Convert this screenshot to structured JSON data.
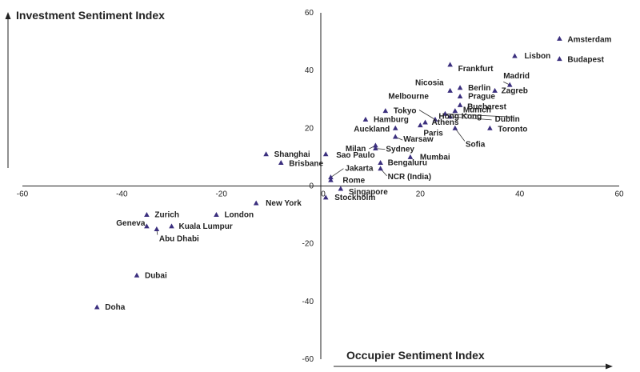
{
  "chart_data": {
    "type": "scatter",
    "title": "",
    "ylabel": "Investment Sentiment Index",
    "xlabel": "Occupier Sentiment Index",
    "xlim": [
      -60,
      60
    ],
    "ylim": [
      -60,
      60
    ],
    "x_ticks": [
      -60,
      -40,
      -20,
      0,
      20,
      40,
      60
    ],
    "y_ticks": [
      -60,
      -40,
      -20,
      0,
      20,
      40,
      60
    ],
    "grid": false,
    "points": [
      {
        "label": "Amsterdam",
        "x": 48,
        "y": 51
      },
      {
        "label": "Lisbon",
        "x": 39,
        "y": 45
      },
      {
        "label": "Budapest",
        "x": 48,
        "y": 44
      },
      {
        "label": "Frankfurt",
        "x": 26,
        "y": 42
      },
      {
        "label": "Madrid",
        "x": 38,
        "y": 35
      },
      {
        "label": "Nicosia",
        "x": 26,
        "y": 33
      },
      {
        "label": "Berlin",
        "x": 28,
        "y": 34
      },
      {
        "label": "Prague",
        "x": 28,
        "y": 31
      },
      {
        "label": "Zagreb",
        "x": 35,
        "y": 33
      },
      {
        "label": "Bucharest",
        "x": 28,
        "y": 28
      },
      {
        "label": "Munich",
        "x": 27,
        "y": 26
      },
      {
        "label": "Melbourne",
        "x": 23,
        "y": 23
      },
      {
        "label": "Tokyo",
        "x": 13,
        "y": 26
      },
      {
        "label": "Hong Kong",
        "x": 25,
        "y": 25
      },
      {
        "label": "Dublin",
        "x": 26,
        "y": 24
      },
      {
        "label": "Hamburg",
        "x": 9,
        "y": 23
      },
      {
        "label": "Athens",
        "x": 21,
        "y": 22
      },
      {
        "label": "Toronto",
        "x": 34,
        "y": 20
      },
      {
        "label": "Auckland",
        "x": 15,
        "y": 20
      },
      {
        "label": "Paris",
        "x": 20,
        "y": 21
      },
      {
        "label": "Sofia",
        "x": 27,
        "y": 20
      },
      {
        "label": "Milan",
        "x": 11,
        "y": 14
      },
      {
        "label": "Warsaw",
        "x": 15,
        "y": 17
      },
      {
        "label": "Sydney",
        "x": 11,
        "y": 13
      },
      {
        "label": "Shanghai",
        "x": -11,
        "y": 11
      },
      {
        "label": "Sao Paulo",
        "x": 1,
        "y": 11
      },
      {
        "label": "Mumbai",
        "x": 18,
        "y": 10
      },
      {
        "label": "Brisbane",
        "x": -8,
        "y": 8
      },
      {
        "label": "Bengaluru",
        "x": 12,
        "y": 8
      },
      {
        "label": "NCR (India)",
        "x": 12,
        "y": 6
      },
      {
        "label": "Jakarta",
        "x": 2,
        "y": 3
      },
      {
        "label": "Rome",
        "x": 2,
        "y": 2
      },
      {
        "label": "Singapore",
        "x": 4,
        "y": -1
      },
      {
        "label": "Stockholm",
        "x": 1,
        "y": -4
      },
      {
        "label": "New York",
        "x": -13,
        "y": -6
      },
      {
        "label": "Zurich",
        "x": -35,
        "y": -10
      },
      {
        "label": "London",
        "x": -21,
        "y": -10
      },
      {
        "label": "Geneva",
        "x": -35,
        "y": -14
      },
      {
        "label": "Kuala Lumpur",
        "x": -30,
        "y": -14
      },
      {
        "label": "Abu Dhabi",
        "x": -33,
        "y": -15
      },
      {
        "label": "Dubai",
        "x": -37,
        "y": -31
      },
      {
        "label": "Doha",
        "x": -45,
        "y": -42
      }
    ]
  }
}
